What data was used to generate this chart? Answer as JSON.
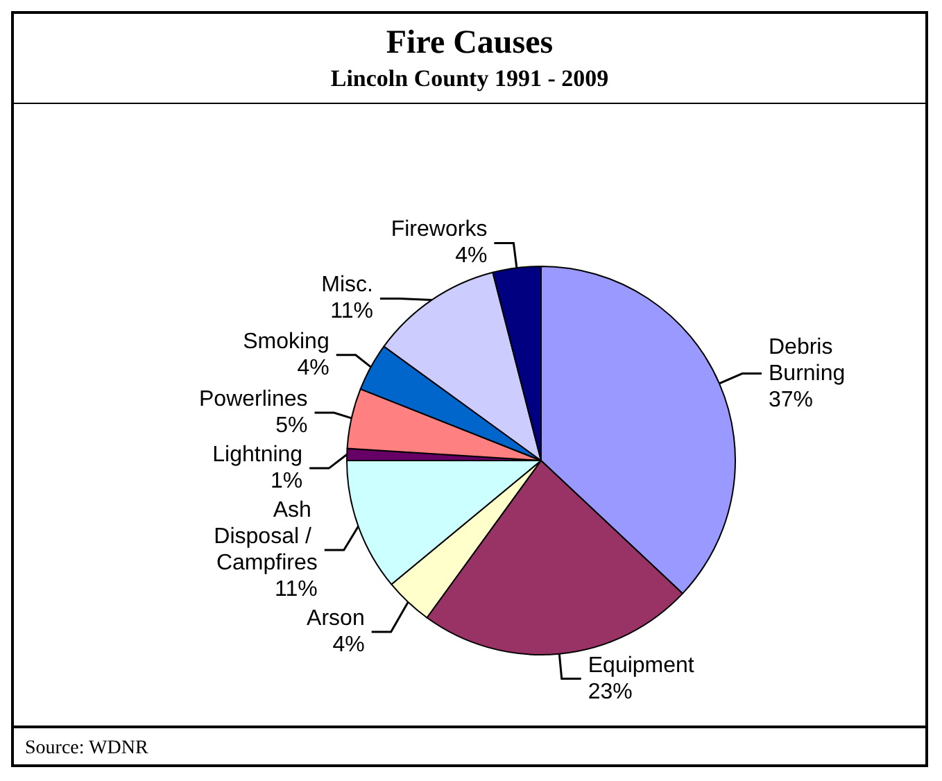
{
  "chart_data": {
    "type": "pie",
    "title": "Fire Causes",
    "subtitle": "Lincoln County 1991 - 2009",
    "categories": [
      "Debris Burning",
      "Equipment",
      "Arson",
      "Ash Disposal / Campfires",
      "Lightning",
      "Powerlines",
      "Smoking",
      "Misc.",
      "Fireworks"
    ],
    "values": [
      37,
      23,
      4,
      11,
      1,
      5,
      4,
      11,
      4
    ],
    "colors": [
      "#9999ff",
      "#993366",
      "#ffffcc",
      "#ccffff",
      "#660066",
      "#ff8080",
      "#0066cc",
      "#ccccff",
      "#000080"
    ],
    "value_labels": [
      "37%",
      "23%",
      "4%",
      "11%",
      "1%",
      "5%",
      "4%",
      "11%",
      "4%"
    ],
    "annotations": [
      "Source:  WDNR"
    ]
  }
}
